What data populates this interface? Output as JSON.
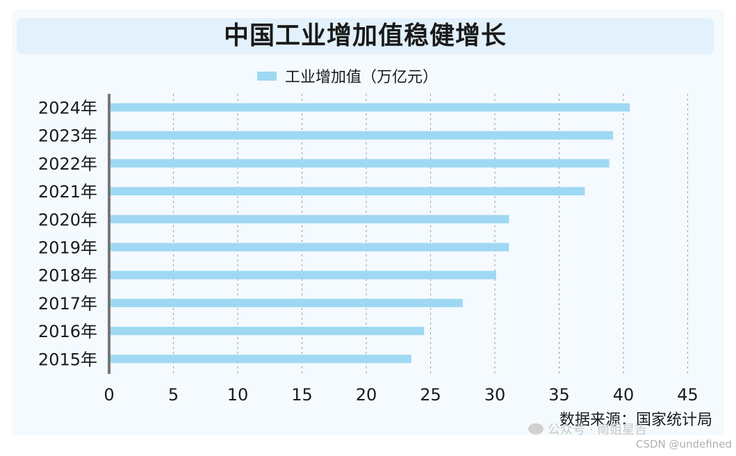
{
  "chart_data": {
    "type": "bar",
    "orientation": "horizontal",
    "title": "中国工业增加值稳健增长",
    "categories": [
      "2024年",
      "2023年",
      "2022年",
      "2021年",
      "2020年",
      "2019年",
      "2018年",
      "2017年",
      "2016年",
      "2015年"
    ],
    "series": [
      {
        "name": "工业增加值（万亿元）",
        "values": [
          40.5,
          39.2,
          38.9,
          37.0,
          31.1,
          31.1,
          30.1,
          27.5,
          24.5,
          23.5
        ],
        "color": "#9fd8f3"
      }
    ],
    "xlim": [
      0,
      45
    ],
    "xticks": [
      "0",
      "5",
      "10",
      "15",
      "20",
      "25",
      "30",
      "35",
      "40",
      "45"
    ],
    "grid": "vertical dashed",
    "legend_position": "top-center"
  },
  "source": "数据来源：国家统计局",
  "watermark": "公众号 · 南姐星吉",
  "csdn_mark": "CSDN @undefined",
  "colors": {
    "bar": "#9fd8f3",
    "title_band": "#e2f1fb",
    "panel": "#f4fafe",
    "axis": "#777777",
    "grid": "#9a9a9a"
  }
}
